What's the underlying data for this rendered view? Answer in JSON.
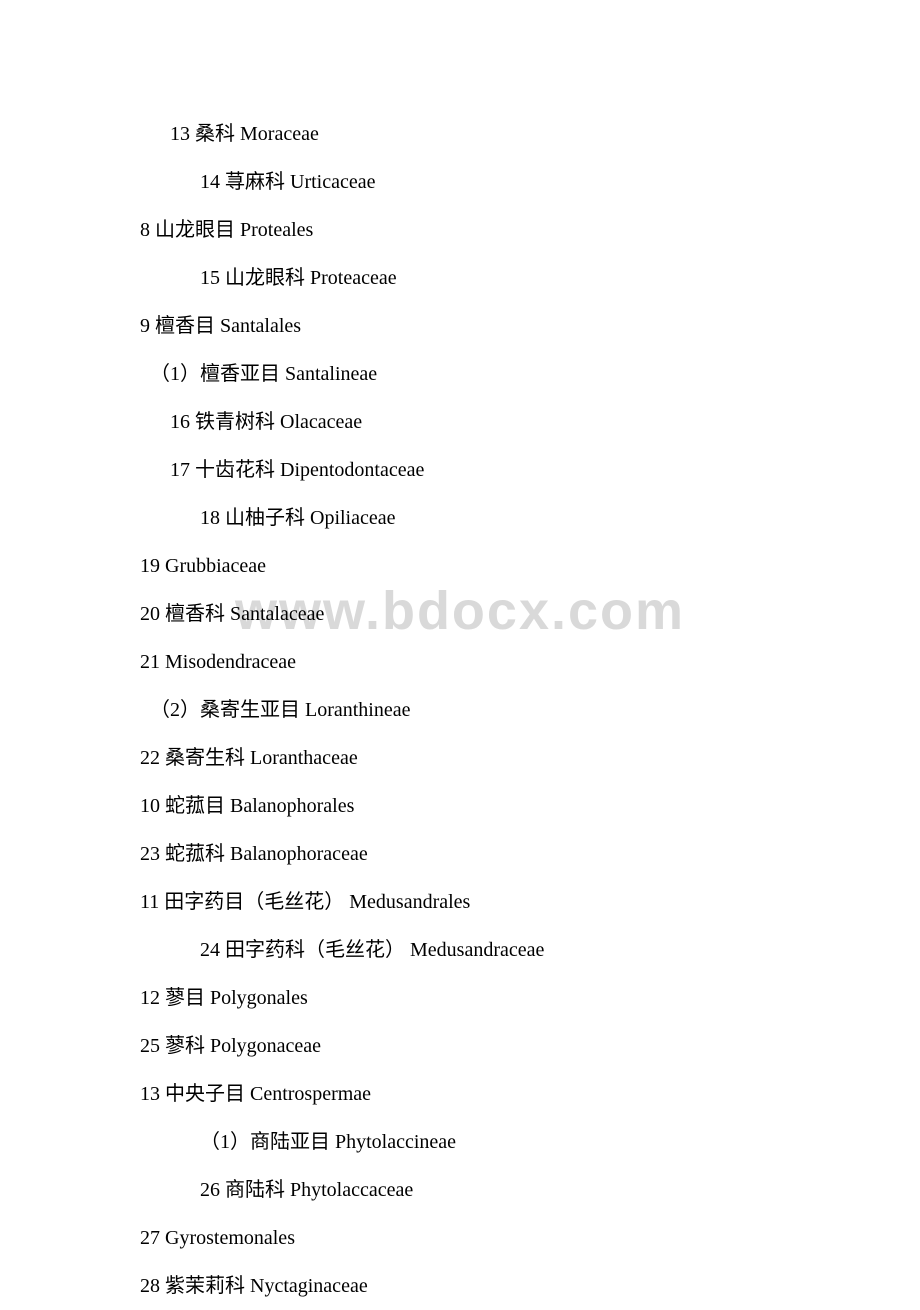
{
  "watermark": "www.bdocx.com",
  "lines": [
    {
      "indent": "indent-1",
      "text": "13 桑科 Moraceae"
    },
    {
      "indent": "indent-2",
      "text": "14 荨麻科 Urticaceae"
    },
    {
      "indent": "",
      "text": "8 山龙眼目 Proteales"
    },
    {
      "indent": "indent-2",
      "text": "15 山龙眼科 Proteaceae"
    },
    {
      "indent": "",
      "text": "9 檀香目 Santalales"
    },
    {
      "indent": "indent-3",
      "text": "（1）檀香亚目 Santalineae"
    },
    {
      "indent": "indent-1",
      "text": "16 铁青树科 Olacaceae"
    },
    {
      "indent": "indent-1",
      "text": "17 十齿花科 Dipentodontaceae"
    },
    {
      "indent": "indent-2",
      "text": "18 山柚子科 Opiliaceae"
    },
    {
      "indent": "",
      "text": "19 Grubbiaceae"
    },
    {
      "indent": "",
      "text": "20 檀香科 Santalaceae"
    },
    {
      "indent": "",
      "text": "21 Misodendraceae"
    },
    {
      "indent": "indent-3",
      "text": "（2）桑寄生亚目 Loranthineae"
    },
    {
      "indent": "",
      "text": "22 桑寄生科 Loranthaceae"
    },
    {
      "indent": "",
      "text": "10 蛇菰目 Balanophorales"
    },
    {
      "indent": "",
      "text": "23 蛇菰科 Balanophoraceae"
    },
    {
      "indent": "",
      "text": "11 田字药目（毛丝花） Medusandrales"
    },
    {
      "indent": "indent-2",
      "text": "24 田字药科（毛丝花） Medusandraceae"
    },
    {
      "indent": "",
      "text": "12 蓼目 Polygonales"
    },
    {
      "indent": "",
      "text": "25 蓼科 Polygonaceae"
    },
    {
      "indent": "",
      "text": "13 中央子目 Centrospermae"
    },
    {
      "indent": "indent-2",
      "text": "（1）商陆亚目 Phytolaccineae"
    },
    {
      "indent": "indent-2",
      "text": " 26 商陆科 Phytolaccaceae"
    },
    {
      "indent": "",
      "text": "27 Gyrostemonales"
    },
    {
      "indent": "",
      "text": "28 紫茉莉科 Nyctaginaceae"
    }
  ]
}
